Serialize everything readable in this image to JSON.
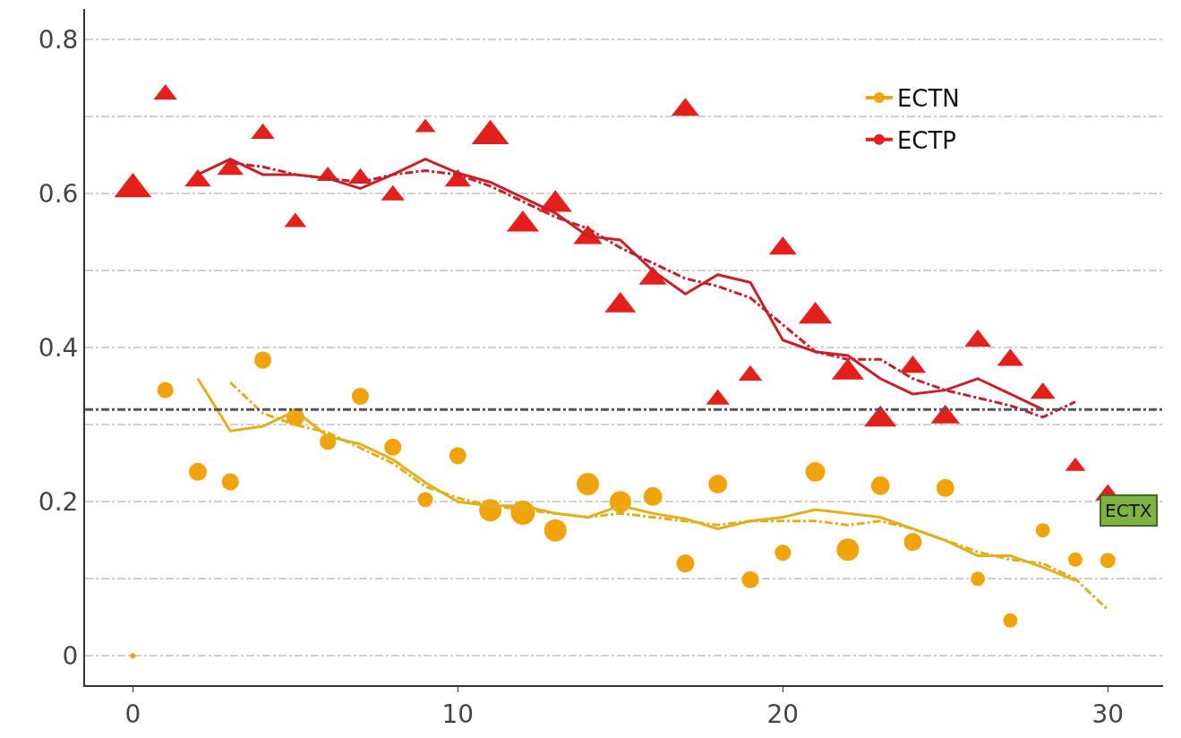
{
  "chart_data": {
    "type": "bubble",
    "xlim": [
      -1.47,
      31.7
    ],
    "ylim": [
      -0.038,
      0.84
    ],
    "xticks": [
      0,
      10,
      20,
      30
    ],
    "yticks": [
      0,
      {
        "value": 0.1,
        "label": null
      },
      0.2,
      {
        "value": 0.3,
        "label": null
      },
      0.4,
      {
        "value": 0.5,
        "label": null
      },
      0.6,
      {
        "value": 0.7,
        "label": null
      },
      0.8
    ],
    "grid": "y",
    "legend": "top right",
    "series": [
      {
        "name": "ECTN",
        "marker": "circle",
        "color": "#f0a30a",
        "x": [
          0,
          1,
          2,
          3,
          4,
          5,
          6,
          7,
          8,
          9,
          10,
          11,
          12,
          13,
          14,
          15,
          16,
          17,
          18,
          19,
          20,
          21,
          22,
          23,
          24,
          25,
          26,
          27,
          28,
          29,
          30
        ],
        "values": [
          0.0,
          0.345,
          0.239,
          0.226,
          0.384,
          0.31,
          0.278,
          0.337,
          0.271,
          0.203,
          0.26,
          0.189,
          0.186,
          0.163,
          0.223,
          0.2,
          0.207,
          0.12,
          0.223,
          0.099,
          0.134,
          0.239,
          0.138,
          0.221,
          0.148,
          0.218,
          0.1,
          0.046,
          0.163,
          0.125,
          0.124
        ],
        "sizes": [
          0.05,
          0.45,
          0.55,
          0.5,
          0.5,
          0.55,
          0.45,
          0.5,
          0.5,
          0.4,
          0.5,
          0.85,
          1,
          0.85,
          0.85,
          0.8,
          0.6,
          0.55,
          0.6,
          0.5,
          0.45,
          0.65,
          0.85,
          0.6,
          0.55,
          0.55,
          0.35,
          0.35,
          0.35,
          0.35,
          0.4
        ]
      },
      {
        "name": "ECTP",
        "marker": "triangle",
        "color": "#e3201b",
        "x": [
          0,
          1,
          2,
          3,
          4,
          5,
          6,
          7,
          8,
          9,
          10,
          11,
          12,
          13,
          14,
          15,
          16,
          17,
          18,
          19,
          20,
          21,
          22,
          23,
          24,
          25,
          26,
          27,
          28,
          29,
          30
        ],
        "values": [
          0.606,
          0.729,
          0.617,
          0.632,
          0.678,
          0.563,
          0.623,
          0.62,
          0.598,
          0.686,
          0.617,
          0.675,
          0.56,
          0.586,
          0.543,
          0.455,
          0.49,
          0.709,
          0.333,
          0.364,
          0.529,
          0.441,
          0.368,
          0.307,
          0.375,
          0.31,
          0.409,
          0.384,
          0.341,
          0.246,
          0.209
        ],
        "sizes": [
          1,
          0.4,
          0.5,
          0.5,
          0.4,
          0.35,
          0.35,
          0.4,
          0.4,
          0.3,
          0.5,
          1,
          0.75,
          0.8,
          0.6,
          0.7,
          0.55,
          0.55,
          0.4,
          0.4,
          0.55,
          0.8,
          0.75,
          0.75,
          0.5,
          0.6,
          0.5,
          0.5,
          0.45,
          0.3,
          0.45
        ]
      },
      {
        "type": "line",
        "line_style": "solid",
        "color": "#e0b020",
        "x": [
          2,
          3,
          4,
          5,
          6,
          7,
          8,
          9,
          10,
          11,
          12,
          13,
          14,
          15,
          16,
          17,
          18,
          19,
          20,
          21,
          22,
          23,
          24,
          25,
          26,
          27,
          28,
          29
        ],
        "values": [
          0.36,
          0.292,
          0.298,
          0.318,
          0.285,
          0.275,
          0.255,
          0.225,
          0.2,
          0.195,
          0.195,
          0.185,
          0.18,
          0.195,
          0.185,
          0.178,
          0.165,
          0.175,
          0.18,
          0.19,
          0.185,
          0.18,
          0.165,
          0.15,
          0.13,
          0.13,
          0.115,
          0.098
        ]
      },
      {
        "type": "line",
        "line_style": "dashed",
        "color": "#e0b020",
        "x": [
          3,
          4,
          5,
          6,
          7,
          8,
          9,
          10,
          11,
          12,
          13,
          14,
          15,
          16,
          17,
          18,
          19,
          20,
          21,
          22,
          23,
          24,
          25,
          26,
          27,
          28,
          29,
          30
        ],
        "values": [
          0.355,
          0.315,
          0.3,
          0.29,
          0.27,
          0.25,
          0.22,
          0.205,
          0.195,
          0.19,
          0.185,
          0.18,
          0.185,
          0.18,
          0.175,
          0.17,
          0.175,
          0.175,
          0.175,
          0.17,
          0.175,
          0.165,
          0.15,
          0.135,
          0.125,
          0.12,
          0.1,
          0.06
        ]
      },
      {
        "type": "line",
        "line_style": "solid",
        "color": "#c8202a",
        "x": [
          2,
          3,
          4,
          5,
          6,
          7,
          8,
          9,
          10,
          11,
          12,
          13,
          14,
          15,
          16,
          17,
          18,
          19,
          20,
          21,
          22,
          23,
          24,
          25,
          26,
          27,
          28
        ],
        "values": [
          0.625,
          0.645,
          0.625,
          0.625,
          0.62,
          0.607,
          0.625,
          0.645,
          0.627,
          0.615,
          0.595,
          0.575,
          0.545,
          0.54,
          0.5,
          0.47,
          0.495,
          0.485,
          0.41,
          0.395,
          0.39,
          0.36,
          0.34,
          0.345,
          0.36,
          0.34,
          0.32
        ]
      },
      {
        "type": "line",
        "line_style": "dashed",
        "color": "#c8202a",
        "x": [
          3,
          4,
          5,
          6,
          7,
          8,
          9,
          10,
          11,
          12,
          13,
          14,
          15,
          16,
          17,
          18,
          19,
          20,
          21,
          22,
          23,
          24,
          25,
          26,
          27,
          28,
          29
        ],
        "values": [
          0.64,
          0.635,
          0.625,
          0.62,
          0.615,
          0.625,
          0.63,
          0.625,
          0.61,
          0.59,
          0.57,
          0.555,
          0.53,
          0.51,
          0.49,
          0.48,
          0.465,
          0.43,
          0.395,
          0.385,
          0.385,
          0.36,
          0.345,
          0.335,
          0.325,
          0.31,
          0.33
        ]
      }
    ],
    "ref_lines": [
      {
        "axis": "y",
        "value": 0.32,
        "label": null,
        "color": "#555555",
        "line_style": "dashed"
      }
    ],
    "annotations": [
      "ECTX"
    ]
  }
}
